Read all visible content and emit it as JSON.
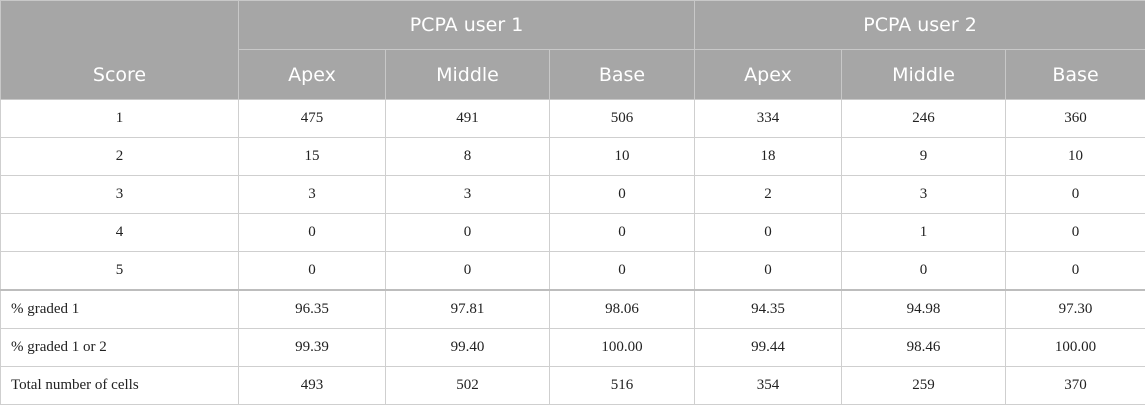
{
  "table": {
    "score_header": "Score",
    "groups": [
      {
        "label": "PCPA user 1"
      },
      {
        "label": "PCPA user 2"
      }
    ],
    "subheaders": [
      "Apex",
      "Middle",
      "Base",
      "Apex",
      "Middle",
      "Base"
    ],
    "rows": [
      {
        "label": "1",
        "values": [
          "475",
          "491",
          "506",
          "334",
          "246",
          "360"
        ]
      },
      {
        "label": "2",
        "values": [
          "15",
          "8",
          "10",
          "18",
          "9",
          "10"
        ]
      },
      {
        "label": "3",
        "values": [
          "3",
          "3",
          "0",
          "2",
          "3",
          "0"
        ]
      },
      {
        "label": "4",
        "values": [
          "0",
          "0",
          "0",
          "0",
          "1",
          "0"
        ]
      },
      {
        "label": "5",
        "values": [
          "0",
          "0",
          "0",
          "0",
          "0",
          "0"
        ]
      },
      {
        "label": "% graded 1",
        "values": [
          "96.35",
          "97.81",
          "98.06",
          "94.35",
          "94.98",
          "97.30"
        ]
      },
      {
        "label": "% graded 1 or 2",
        "values": [
          "99.39",
          "99.40",
          "100.00",
          "99.44",
          "98.46",
          "100.00"
        ]
      },
      {
        "label": "Total number of cells",
        "values": [
          "493",
          "502",
          "516",
          "354",
          "259",
          "370"
        ]
      }
    ]
  }
}
